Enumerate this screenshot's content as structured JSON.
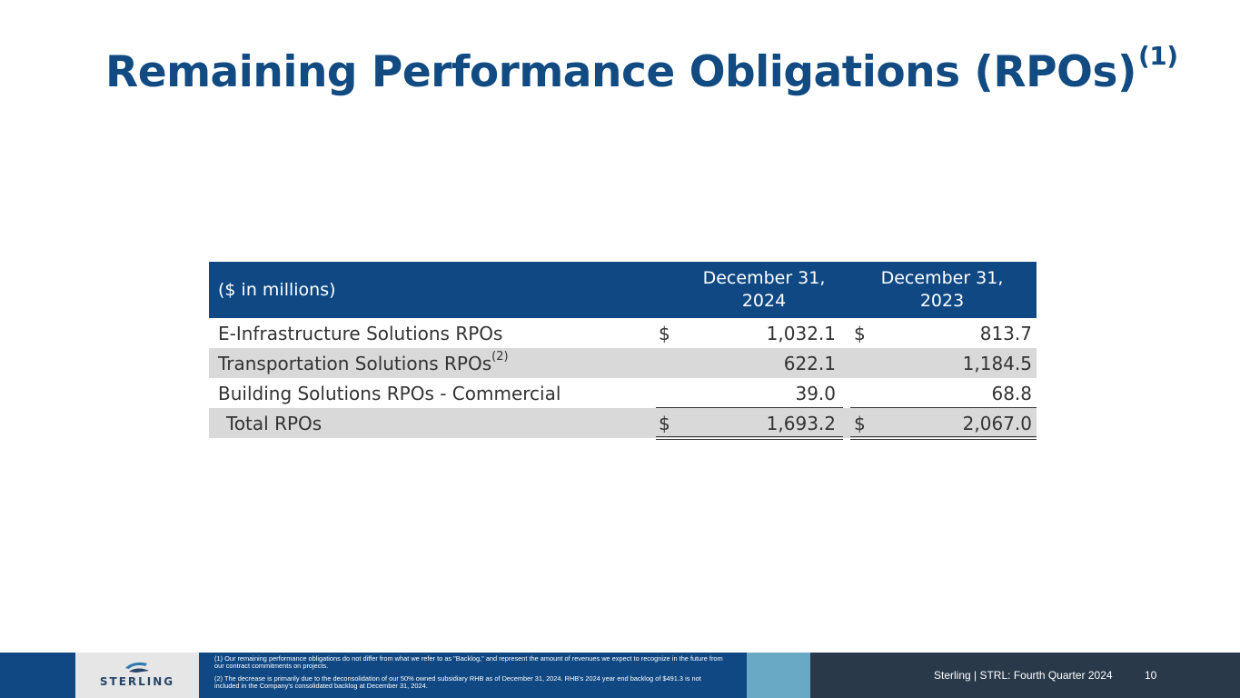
{
  "title": {
    "text": "Remaining Performance Obligations (RPOs)",
    "sup": "(1)"
  },
  "table": {
    "header_label": "($ in millions)",
    "columns": [
      {
        "line1": "December 31,",
        "line2": "2024"
      },
      {
        "line1": "December 31,",
        "line2": "2023"
      }
    ],
    "rows": [
      {
        "label": "E-Infrastructure Solutions RPOs",
        "sup": "",
        "cur1": "$",
        "v1": "1,032.1",
        "cur2": "$",
        "v2": "813.7"
      },
      {
        "label": "Transportation Solutions RPOs",
        "sup": "(2)",
        "cur1": "",
        "v1": "622.1",
        "cur2": "",
        "v2": "1,184.5"
      },
      {
        "label": "Building Solutions RPOs - Commercial",
        "sup": "",
        "cur1": "",
        "v1": "39.0",
        "cur2": "",
        "v2": "68.8"
      },
      {
        "label": "Total RPOs",
        "sup": "",
        "cur1": "$",
        "v1": "1,693.2",
        "cur2": "$",
        "v2": "2,067.0"
      }
    ]
  },
  "footer": {
    "logo_text": "STERLING",
    "note1": "(1)  Our remaining performance obligations do not differ from what we refer to as \"Backlog,\" and represent the amount of revenues we expect to recognize in the future from our contract commitments on projects.",
    "note2": "(2)  The decrease is primarily due to the deconsolidation of our 50% owned subsidiary RHB as of December 31, 2024. RHB's 2024 year end backlog of $491.3 is not included in the Company's consolidated backlog at December 31, 2024.",
    "tagline": "Sterling | STRL:  Fourth Quarter  2024",
    "page": "10"
  },
  "colors": {
    "brand": "#0f4883",
    "accent": "#6aa9c6",
    "dark": "#29394a",
    "shade": "#d9d9d9"
  }
}
